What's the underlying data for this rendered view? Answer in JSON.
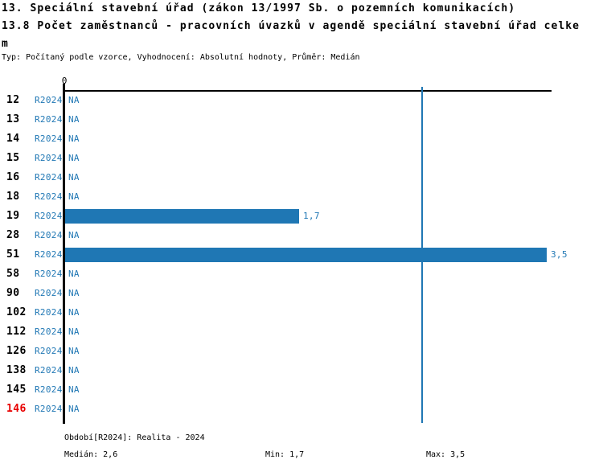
{
  "header": {
    "title_line1": "13. Speciální stavební úřad (zákon 13/1997 Sb. o pozemních komunikacích)",
    "title_line2": "13.8 Počet zaměstnanců - pracovních úvazků v agendě speciální stavební úřad celke",
    "title_line2_wrap": "m",
    "meta": "Typ: Počítaný podle vzorce, Vyhodnocení: Absolutní hodnoty, Průměr: Medián"
  },
  "chart_data": {
    "type": "bar",
    "orientation": "horizontal",
    "title": "13.8 Počet zaměstnanců - pracovních úvazků v agendě speciální stavební úřad celkem",
    "categories": [
      "12",
      "13",
      "14",
      "15",
      "16",
      "18",
      "19",
      "28",
      "51",
      "58",
      "90",
      "102",
      "112",
      "126",
      "138",
      "145",
      "146"
    ],
    "series": [
      {
        "name": "R2024",
        "values": [
          null,
          null,
          null,
          null,
          null,
          null,
          1.7,
          null,
          3.5,
          null,
          null,
          null,
          null,
          null,
          null,
          null,
          null
        ]
      }
    ],
    "value_labels": [
      "NA",
      "NA",
      "NA",
      "NA",
      "NA",
      "NA",
      "1,7",
      "NA",
      "3,5",
      "NA",
      "NA",
      "NA",
      "NA",
      "NA",
      "NA",
      "NA",
      "NA"
    ],
    "na_label": "NA",
    "row_period_label": "R2024",
    "axis_zero_label": "0",
    "xlim": [
      0,
      3.5
    ],
    "median_line": 2.6,
    "highlight_category": "146",
    "grid": false,
    "legend_position": "none",
    "stats": {
      "median": 2.6,
      "min": 1.7,
      "max": 3.5
    }
  },
  "colors": {
    "bar_blue": "#1f77b4",
    "label_blue": "#1f77b4",
    "axis_black": "#000000",
    "highlight_red": "#e80000"
  },
  "footer": {
    "period": "Období[R2024]: Realita - 2024",
    "median": "Medián: 2,6",
    "min": "Min: 1,7",
    "max": "Max: 3,5"
  }
}
